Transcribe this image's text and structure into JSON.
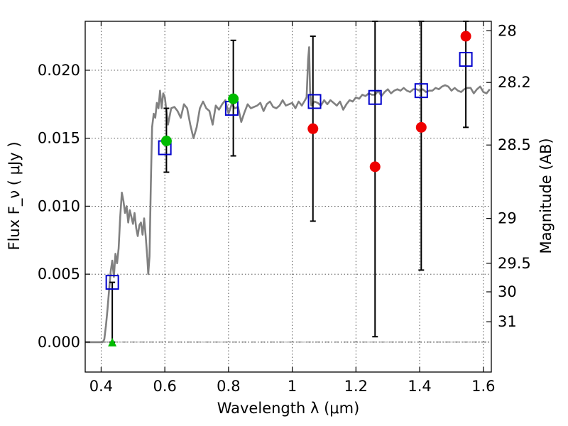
{
  "chart_data": {
    "type": "scatter",
    "xlabel": "Wavelength  λ (μm)",
    "ylabel": "Flux  F_ν  ( μJy )",
    "y2label": "Magnitude (AB)",
    "xlim": [
      0.35,
      1.625
    ],
    "ylim": [
      -0.0022,
      0.0236
    ],
    "x_ticks": [
      0.4,
      0.6,
      0.8,
      1.0,
      1.2,
      1.4,
      1.6
    ],
    "x_tick_labels": [
      "0.4",
      "0.6",
      "0.8",
      "1",
      "1.2",
      "1.4",
      "1.6"
    ],
    "y_ticks": [
      0.0,
      0.005,
      0.01,
      0.015,
      0.02
    ],
    "y_tick_labels": [
      "0.000",
      "0.005",
      "0.010",
      "0.015",
      "0.020"
    ],
    "mag_ticks": [
      {
        "label": "28",
        "flux": 0.0229
      },
      {
        "label": "28.2",
        "flux": 0.0191
      },
      {
        "label": "28.5",
        "flux": 0.0145
      },
      {
        "label": "29",
        "flux": 0.0091
      },
      {
        "label": "29.5",
        "flux": 0.0058
      },
      {
        "label": "30",
        "flux": 0.0037
      },
      {
        "label": "31",
        "flux": 0.0015
      }
    ],
    "grid": true,
    "colors": {
      "model": "#808080",
      "box": "#0000cc",
      "red": "#ee0000",
      "green": "#00bb00",
      "errorbar": "#000000"
    },
    "model_sed": {
      "x": [
        0.35,
        0.405,
        0.41,
        0.415,
        0.42,
        0.425,
        0.43,
        0.435,
        0.44,
        0.445,
        0.45,
        0.455,
        0.46,
        0.465,
        0.47,
        0.475,
        0.48,
        0.485,
        0.49,
        0.495,
        0.5,
        0.505,
        0.51,
        0.515,
        0.52,
        0.525,
        0.53,
        0.535,
        0.54,
        0.545,
        0.548,
        0.552,
        0.556,
        0.56,
        0.565,
        0.57,
        0.575,
        0.58,
        0.585,
        0.59,
        0.595,
        0.6,
        0.605,
        0.61,
        0.62,
        0.63,
        0.64,
        0.65,
        0.66,
        0.67,
        0.68,
        0.69,
        0.7,
        0.71,
        0.72,
        0.73,
        0.74,
        0.75,
        0.76,
        0.77,
        0.78,
        0.79,
        0.8,
        0.81,
        0.82,
        0.83,
        0.84,
        0.85,
        0.86,
        0.87,
        0.88,
        0.89,
        0.9,
        0.91,
        0.92,
        0.93,
        0.94,
        0.95,
        0.96,
        0.97,
        0.98,
        0.99,
        1.0,
        1.01,
        1.02,
        1.03,
        1.04,
        1.045,
        1.05,
        1.053,
        1.056,
        1.06,
        1.07,
        1.08,
        1.09,
        1.1,
        1.11,
        1.12,
        1.13,
        1.14,
        1.15,
        1.16,
        1.17,
        1.18,
        1.19,
        1.2,
        1.21,
        1.22,
        1.23,
        1.24,
        1.25,
        1.26,
        1.27,
        1.28,
        1.29,
        1.3,
        1.31,
        1.32,
        1.33,
        1.34,
        1.35,
        1.36,
        1.37,
        1.38,
        1.39,
        1.4,
        1.41,
        1.42,
        1.43,
        1.44,
        1.45,
        1.46,
        1.47,
        1.48,
        1.49,
        1.5,
        1.51,
        1.52,
        1.53,
        1.54,
        1.55,
        1.56,
        1.57,
        1.58,
        1.59,
        1.6,
        1.61,
        1.62
      ],
      "y": [
        0.0,
        0.0,
        0.0002,
        0.0012,
        0.0024,
        0.0038,
        0.0052,
        0.006,
        0.0048,
        0.0065,
        0.0058,
        0.0069,
        0.0092,
        0.011,
        0.0104,
        0.0095,
        0.01,
        0.0088,
        0.0097,
        0.0092,
        0.0087,
        0.0095,
        0.0084,
        0.0078,
        0.0086,
        0.0088,
        0.0079,
        0.0091,
        0.0078,
        0.0062,
        0.005,
        0.0063,
        0.0115,
        0.0158,
        0.0168,
        0.0165,
        0.0176,
        0.0172,
        0.0185,
        0.0172,
        0.0183,
        0.018,
        0.017,
        0.016,
        0.0172,
        0.0173,
        0.017,
        0.0165,
        0.0175,
        0.0172,
        0.016,
        0.015,
        0.0158,
        0.0172,
        0.0177,
        0.0172,
        0.017,
        0.016,
        0.0174,
        0.0171,
        0.0175,
        0.0178,
        0.0168,
        0.0175,
        0.0172,
        0.0173,
        0.0162,
        0.0169,
        0.0175,
        0.0172,
        0.0173,
        0.0174,
        0.0176,
        0.017,
        0.0175,
        0.0177,
        0.0173,
        0.0172,
        0.0174,
        0.0178,
        0.0174,
        0.0175,
        0.0176,
        0.0172,
        0.0177,
        0.0174,
        0.0178,
        0.018,
        0.0208,
        0.0217,
        0.0185,
        0.0174,
        0.0177,
        0.0176,
        0.0174,
        0.0178,
        0.0175,
        0.0178,
        0.0176,
        0.0174,
        0.0177,
        0.0171,
        0.0175,
        0.0178,
        0.0177,
        0.018,
        0.0179,
        0.0182,
        0.0181,
        0.0183,
        0.0182,
        0.0182,
        0.0185,
        0.0181,
        0.0184,
        0.0186,
        0.0183,
        0.0185,
        0.0186,
        0.0185,
        0.0187,
        0.0185,
        0.0184,
        0.0186,
        0.0186,
        0.0185,
        0.0186,
        0.0184,
        0.0185,
        0.0185,
        0.0187,
        0.0186,
        0.0188,
        0.0189,
        0.0188,
        0.0185,
        0.0187,
        0.0185,
        0.0184,
        0.0186,
        0.0187,
        0.0187,
        0.0183,
        0.0186,
        0.0188,
        0.0184,
        0.0183,
        0.0186
      ]
    },
    "box_points": [
      {
        "x": 0.435,
        "y": 0.0044
      },
      {
        "x": 0.6,
        "y": 0.0143
      },
      {
        "x": 0.81,
        "y": 0.0172
      },
      {
        "x": 1.07,
        "y": 0.0177
      },
      {
        "x": 1.26,
        "y": 0.018
      },
      {
        "x": 1.405,
        "y": 0.0185
      },
      {
        "x": 1.545,
        "y": 0.0208
      }
    ],
    "red_points": [
      {
        "x": 1.065,
        "y": 0.0157
      },
      {
        "x": 1.26,
        "y": 0.0129
      },
      {
        "x": 1.405,
        "y": 0.0158
      },
      {
        "x": 1.545,
        "y": 0.0225
      }
    ],
    "green_points": [
      {
        "x": 0.605,
        "y": 0.0148
      },
      {
        "x": 0.815,
        "y": 0.0179
      }
    ],
    "green_upper_limit": {
      "x": 0.435,
      "y": 0.0
    },
    "error_bars": [
      {
        "x": 0.435,
        "low": 0.0,
        "high": 0.0044
      },
      {
        "x": 0.605,
        "low": 0.0125,
        "high": 0.0172
      },
      {
        "x": 0.815,
        "low": 0.0137,
        "high": 0.0222
      },
      {
        "x": 1.065,
        "low": 0.0089,
        "high": 0.0225
      },
      {
        "x": 1.26,
        "low": 0.0004,
        "high": 0.0236
      },
      {
        "x": 1.405,
        "low": 0.0053,
        "high": 0.0236
      },
      {
        "x": 1.545,
        "low": 0.0158,
        "high": 0.0236
      }
    ]
  }
}
